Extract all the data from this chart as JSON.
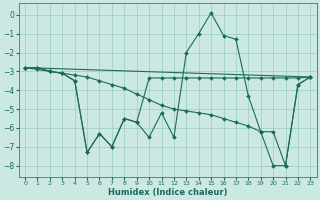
{
  "xlabel": "Humidex (Indice chaleur)",
  "background_color": "#cce8e2",
  "grid_color": "#99ccc2",
  "line_color": "#1a6b5a",
  "xlim": [
    -0.5,
    23.5
  ],
  "ylim": [
    -8.6,
    0.6
  ],
  "xticks": [
    0,
    1,
    2,
    3,
    4,
    5,
    6,
    7,
    8,
    9,
    10,
    11,
    12,
    13,
    14,
    15,
    16,
    17,
    18,
    19,
    20,
    21,
    22,
    23
  ],
  "yticks": [
    0,
    -1,
    -2,
    -3,
    -4,
    -5,
    -6,
    -7,
    -8
  ],
  "lines": [
    {
      "x": [
        0,
        1,
        2,
        3,
        4,
        5,
        6,
        7,
        8,
        9,
        10,
        11,
        12,
        13,
        14,
        15,
        16,
        17,
        18,
        19,
        20,
        21,
        22,
        23
      ],
      "y": [
        -2.8,
        -2.8,
        -3.0,
        -3.1,
        -3.5,
        -7.3,
        -6.3,
        -7.0,
        -5.5,
        -5.7,
        -6.5,
        -5.2,
        -6.5,
        -2.0,
        -1.0,
        0.1,
        -1.1,
        -1.3,
        -4.3,
        -6.2,
        -8.0,
        -8.0,
        -3.7,
        -3.3
      ]
    },
    {
      "x": [
        0,
        1,
        2,
        3,
        4,
        5,
        6,
        7,
        8,
        9,
        10,
        11,
        12,
        13,
        14,
        15,
        16,
        17,
        18,
        19,
        20,
        21,
        22,
        23
      ],
      "y": [
        -2.8,
        -2.8,
        -3.0,
        -3.1,
        -3.5,
        -7.3,
        -6.3,
        -7.0,
        -5.5,
        -5.7,
        -3.35,
        -3.35,
        -3.35,
        -3.35,
        -3.35,
        -3.35,
        -3.35,
        -3.35,
        -3.35,
        -3.35,
        -3.35,
        -3.35,
        -3.35,
        -3.3
      ]
    },
    {
      "x": [
        0,
        23
      ],
      "y": [
        -2.8,
        -3.3
      ]
    },
    {
      "x": [
        0,
        1,
        2,
        3,
        4,
        5,
        6,
        7,
        8,
        9,
        10,
        11,
        12,
        13,
        14,
        15,
        16,
        17,
        18,
        19,
        20,
        21,
        22,
        23
      ],
      "y": [
        -2.8,
        -2.9,
        -3.0,
        -3.1,
        -3.2,
        -3.3,
        -3.5,
        -3.7,
        -3.9,
        -4.2,
        -4.5,
        -4.8,
        -5.0,
        -5.1,
        -5.2,
        -5.3,
        -5.5,
        -5.7,
        -5.9,
        -6.2,
        -6.2,
        -8.0,
        -3.7,
        -3.3
      ]
    }
  ]
}
